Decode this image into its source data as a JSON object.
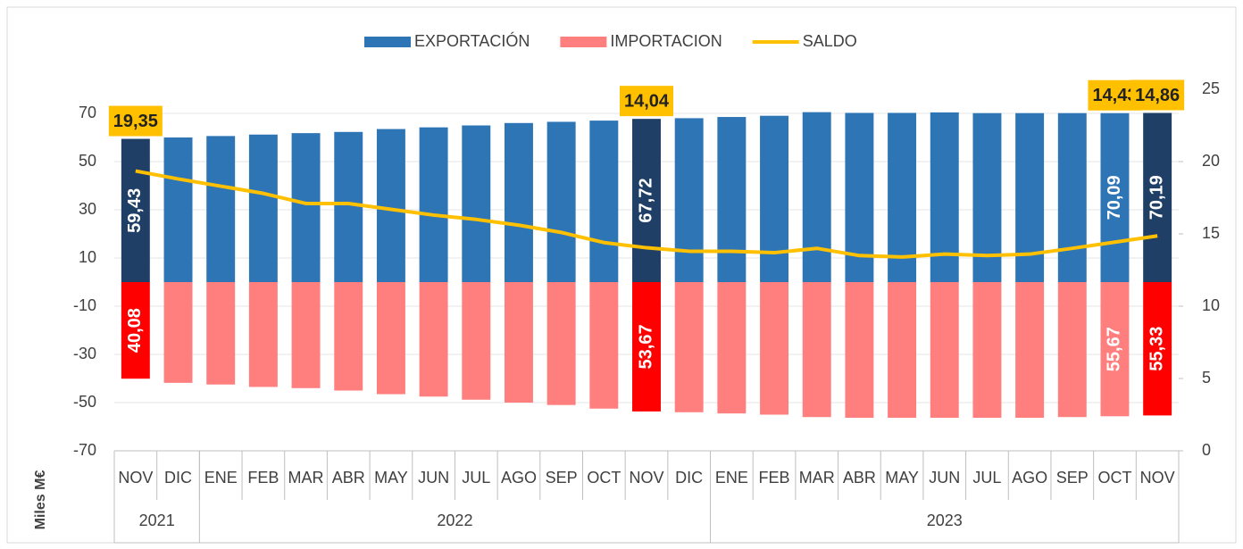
{
  "chart_data": {
    "type": "bar_line",
    "categories": [
      "NOV",
      "DIC",
      "ENE",
      "FEB",
      "MAR",
      "ABR",
      "MAY",
      "JUN",
      "JUL",
      "AGO",
      "SEP",
      "OCT",
      "NOV",
      "DIC",
      "ENE",
      "FEB",
      "MAR",
      "ABR",
      "MAY",
      "JUN",
      "JUL",
      "AGO",
      "SEP",
      "OCT",
      "NOV"
    ],
    "year_groups": [
      {
        "label": "2021",
        "span": 2
      },
      {
        "label": "2022",
        "span": 12
      },
      {
        "label": "2023",
        "span": 11
      }
    ],
    "y_label": "Miles M€",
    "ylim": [
      -70,
      80
    ],
    "yticks": [
      -70,
      -50,
      -30,
      -10,
      10,
      30,
      50,
      70
    ],
    "y2lim": [
      0,
      25
    ],
    "y2ticks": [
      0,
      5,
      10,
      15,
      20,
      25
    ],
    "grid": true,
    "legend": "top",
    "series": [
      {
        "name": "EXPORTACIÓN",
        "type": "bar",
        "color": "#2e75b6",
        "colors": [
          "#1f3f66",
          "#2e75b6",
          "#2e75b6",
          "#2e75b6",
          "#2e75b6",
          "#2e75b6",
          "#2e75b6",
          "#2e75b6",
          "#2e75b6",
          "#2e75b6",
          "#2e75b6",
          "#2e75b6",
          "#1f3f66",
          "#2e75b6",
          "#2e75b6",
          "#2e75b6",
          "#2e75b6",
          "#2e75b6",
          "#2e75b6",
          "#2e75b6",
          "#2e75b6",
          "#2e75b6",
          "#2e75b6",
          "#2e75b6",
          "#1f3f66"
        ],
        "values": [
          59.43,
          60,
          60.6,
          61.2,
          61.8,
          62.3,
          63.5,
          64.2,
          65,
          66,
          66.5,
          67,
          67.72,
          68,
          68.5,
          69,
          70.5,
          70.2,
          70.2,
          70.4,
          70.1,
          70.1,
          70.1,
          70.09,
          70.19
        ],
        "value_labels": [
          "59,43",
          null,
          null,
          null,
          null,
          null,
          null,
          null,
          null,
          null,
          null,
          null,
          "67,72",
          null,
          null,
          null,
          null,
          null,
          null,
          null,
          null,
          null,
          null,
          "70,09",
          "70,19"
        ]
      },
      {
        "name": "IMPORTACION",
        "type": "bar",
        "color": "#ff7f7f",
        "colors": [
          "#ff0000",
          "#ff7f7f",
          "#ff7f7f",
          "#ff7f7f",
          "#ff7f7f",
          "#ff7f7f",
          "#ff7f7f",
          "#ff7f7f",
          "#ff7f7f",
          "#ff7f7f",
          "#ff7f7f",
          "#ff7f7f",
          "#ff0000",
          "#ff7f7f",
          "#ff7f7f",
          "#ff7f7f",
          "#ff7f7f",
          "#ff7f7f",
          "#ff7f7f",
          "#ff7f7f",
          "#ff7f7f",
          "#ff7f7f",
          "#ff7f7f",
          "#ff7f7f",
          "#ff0000"
        ],
        "values": [
          -40.08,
          -41.8,
          -42.5,
          -43.5,
          -44,
          -45,
          -46.5,
          -47.5,
          -48.8,
          -50,
          -51,
          -52.5,
          -53.67,
          -54,
          -54.5,
          -55,
          -56,
          -56.3,
          -56.3,
          -56.3,
          -56.3,
          -56.3,
          -56,
          -55.67,
          -55.33
        ],
        "value_labels": [
          "40,08",
          null,
          null,
          null,
          null,
          null,
          null,
          null,
          null,
          null,
          null,
          null,
          "53,67",
          null,
          null,
          null,
          null,
          null,
          null,
          null,
          null,
          null,
          null,
          "55,67",
          "55,33"
        ]
      },
      {
        "name": "SALDO",
        "type": "line",
        "axis": "y2",
        "color": "#ffc000",
        "values": [
          19.35,
          18.8,
          18.3,
          17.8,
          17.1,
          17.1,
          16.7,
          16.3,
          16.0,
          15.6,
          15.1,
          14.4,
          14.04,
          13.8,
          13.8,
          13.7,
          14.0,
          13.5,
          13.4,
          13.6,
          13.5,
          13.6,
          14.0,
          14.43,
          14.86
        ],
        "value_labels": [
          "19,35",
          null,
          null,
          null,
          null,
          null,
          null,
          null,
          null,
          null,
          null,
          null,
          "14,04",
          null,
          null,
          null,
          null,
          null,
          null,
          null,
          null,
          null,
          null,
          "14,43",
          "14,86"
        ]
      }
    ]
  }
}
